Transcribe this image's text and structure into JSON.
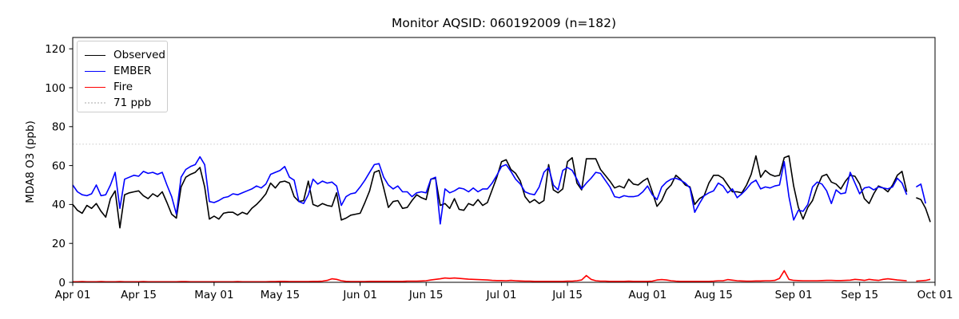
{
  "title": "Monitor AQSID: 060192009 (n=182)",
  "legend": {
    "items": [
      {
        "label": "Observed",
        "color": "#000000",
        "style": "solid"
      },
      {
        "label": "EMBER",
        "color": "#0000ff",
        "style": "solid"
      },
      {
        "label": "Fire",
        "color": "#ff0000",
        "style": "solid"
      },
      {
        "label": "71 ppb",
        "color": "#d3d3d3",
        "style": "dotted"
      }
    ]
  },
  "chart_data": {
    "type": "line",
    "title": "Monitor AQSID: 060192009 (n=182)",
    "xlabel": "",
    "ylabel": "MDA8 O3 (ppb)",
    "ylim": [
      0,
      126
    ],
    "grid": false,
    "legend_position": "upper left",
    "n_label": 182,
    "x_start": "Apr 01",
    "x_end": "Oct 01",
    "days_total": 183,
    "missing_day_index": 178,
    "y_ticks": [
      0,
      20,
      40,
      60,
      80,
      100,
      120
    ],
    "x_ticks": [
      {
        "label": "Apr 01",
        "day": 0
      },
      {
        "label": "Apr 15",
        "day": 14
      },
      {
        "label": "May 01",
        "day": 30
      },
      {
        "label": "May 15",
        "day": 44
      },
      {
        "label": "Jun 01",
        "day": 61
      },
      {
        "label": "Jun 15",
        "day": 75
      },
      {
        "label": "Jul 01",
        "day": 91
      },
      {
        "label": "Jul 15",
        "day": 105
      },
      {
        "label": "Aug 01",
        "day": 122
      },
      {
        "label": "Aug 15",
        "day": 136
      },
      {
        "label": "Sep 01",
        "day": 153
      },
      {
        "label": "Sep 15",
        "day": 167
      },
      {
        "label": "Oct 01",
        "day": 183
      }
    ],
    "threshold": {
      "label": "71 ppb",
      "value": 71,
      "color": "#d3d3d3",
      "style": "dotted"
    },
    "series": [
      {
        "name": "Observed",
        "color": "#000000",
        "values": [
          40,
          37,
          35.5,
          39.5,
          38,
          40.5,
          36.5,
          33.5,
          43,
          47,
          28,
          45,
          46,
          46.5,
          47,
          44.5,
          43,
          45.5,
          44,
          46.5,
          41,
          35,
          33,
          49,
          54,
          55.5,
          56.5,
          59,
          49,
          32.5,
          34,
          32.5,
          35.5,
          36,
          36,
          34.5,
          36,
          35,
          38,
          40,
          42.5,
          45.5,
          51,
          48.5,
          51.5,
          52,
          51,
          44,
          41.5,
          42,
          52,
          40,
          39,
          40.5,
          39.5,
          39,
          46,
          32,
          33,
          34.5,
          35,
          35.5,
          41,
          47,
          56.5,
          57.5,
          48.5,
          38.5,
          41.5,
          42,
          38,
          38.5,
          42,
          45,
          43.5,
          42.5,
          53,
          53.5,
          39.5,
          40.5,
          38,
          43,
          37.5,
          37,
          40.5,
          39.5,
          42.5,
          39.5,
          41,
          47.5,
          54,
          62,
          63,
          58,
          56,
          52,
          44,
          41,
          42.5,
          40.5,
          42,
          60.5,
          47.5,
          46,
          48,
          62,
          64,
          51,
          47.5,
          63.5,
          63.5,
          63.5,
          58,
          55,
          52,
          48.5,
          49.5,
          48.5,
          53,
          50.5,
          50,
          52,
          53.5,
          46.5,
          39,
          42,
          47.5,
          50,
          55,
          53,
          50,
          49,
          40,
          43,
          44.5,
          51,
          55,
          55,
          53.5,
          50,
          46.5,
          46.5,
          46,
          50,
          55.5,
          65,
          54,
          57.5,
          55.5,
          54.5,
          55,
          64,
          65,
          49.5,
          38.5,
          32.5,
          38.5,
          42,
          49,
          54.5,
          55.5,
          51.5,
          50.5,
          48,
          52,
          55,
          54.5,
          50.5,
          43,
          40.5,
          45.5,
          49.5,
          48.5,
          46.5,
          50,
          55,
          57,
          46.5,
          null,
          43.5,
          42.5,
          38,
          31
        ]
      },
      {
        "name": "EMBER",
        "color": "#0000ff",
        "values": [
          50,
          46.5,
          45,
          44.5,
          45.5,
          50,
          44.5,
          45,
          50,
          56.5,
          38,
          53,
          54,
          55,
          54.5,
          57,
          56,
          56.5,
          55.5,
          56.5,
          50,
          44,
          35,
          54,
          58,
          59.5,
          60.5,
          64.5,
          60.5,
          41.5,
          41,
          42,
          43.5,
          44,
          45.5,
          45,
          46,
          47,
          48,
          49.5,
          48.5,
          50.5,
          55.5,
          56.5,
          57.5,
          59.5,
          54,
          52.5,
          41.5,
          40.5,
          45,
          53,
          50.5,
          52,
          51,
          51.5,
          49.5,
          39.5,
          44,
          45.5,
          46,
          49,
          52.5,
          56.5,
          60.5,
          61,
          54,
          50,
          48,
          49.5,
          46.5,
          46.5,
          44,
          46,
          46.5,
          46,
          53,
          54,
          30,
          48,
          46,
          47,
          48.5,
          48,
          46.5,
          48.5,
          46.5,
          48,
          48,
          51,
          55,
          59.5,
          60.5,
          57,
          53,
          50.5,
          46.5,
          45.5,
          45,
          49,
          56.5,
          59,
          50,
          47.5,
          57.5,
          59,
          57.5,
          53,
          48,
          51,
          53.5,
          56.5,
          56,
          52.5,
          49,
          44,
          43.5,
          44.5,
          44,
          44,
          44.5,
          46.5,
          49.5,
          45,
          42.5,
          49,
          51.5,
          53,
          53.5,
          52.5,
          51,
          48.5,
          36,
          40.5,
          44.5,
          46,
          47,
          51,
          49.5,
          46,
          48,
          43.5,
          45.5,
          48,
          51,
          52.5,
          48,
          49,
          48.5,
          49.5,
          50,
          62,
          44,
          32,
          37,
          36.5,
          40,
          49,
          51.5,
          50.5,
          47,
          40.5,
          47.5,
          45.5,
          46,
          56.5,
          51,
          45.5,
          48.5,
          49,
          47.5,
          49,
          48.5,
          48,
          49,
          53.5,
          51,
          45,
          null,
          49,
          50.5,
          40.5,
          null
        ]
      },
      {
        "name": "Fire",
        "color": "#ff0000",
        "values": [
          0.3,
          0.3,
          0.4,
          0.3,
          0.3,
          0.3,
          0.4,
          0.3,
          0.3,
          0.3,
          0.4,
          0.3,
          0.3,
          0.3,
          0.3,
          0.4,
          0.3,
          0.3,
          0.3,
          0.3,
          0.3,
          0.3,
          0.3,
          0.4,
          0.4,
          0.3,
          0.3,
          0.3,
          0.3,
          0.3,
          0.3,
          0.3,
          0.3,
          0.3,
          0.3,
          0.4,
          0.3,
          0.3,
          0.3,
          0.3,
          0.3,
          0.3,
          0.4,
          0.4,
          0.5,
          0.5,
          0.4,
          0.4,
          0.4,
          0.4,
          0.4,
          0.5,
          0.5,
          0.6,
          1.0,
          1.8,
          1.5,
          0.8,
          0.5,
          0.4,
          0.4,
          0.4,
          0.4,
          0.5,
          0.5,
          0.5,
          0.5,
          0.5,
          0.5,
          0.5,
          0.5,
          0.6,
          0.6,
          0.6,
          0.7,
          0.8,
          1.2,
          1.5,
          1.8,
          2.2,
          2.0,
          2.2,
          2.0,
          1.8,
          1.6,
          1.5,
          1.4,
          1.3,
          1.2,
          1.0,
          0.9,
          0.9,
          0.8,
          1.0,
          0.8,
          0.7,
          0.6,
          0.6,
          0.5,
          0.5,
          0.5,
          0.5,
          0.5,
          0.5,
          0.5,
          0.6,
          0.6,
          0.8,
          1.2,
          3.5,
          1.5,
          0.8,
          0.6,
          0.6,
          0.5,
          0.5,
          0.5,
          0.5,
          0.6,
          0.5,
          0.5,
          0.5,
          0.5,
          0.6,
          1.2,
          1.4,
          1.2,
          0.8,
          0.6,
          0.5,
          0.5,
          0.5,
          0.5,
          0.5,
          0.5,
          0.5,
          0.6,
          0.8,
          0.8,
          1.4,
          1.1,
          0.8,
          0.7,
          0.6,
          0.6,
          0.7,
          0.7,
          0.8,
          0.8,
          1.0,
          2.0,
          6.0,
          1.5,
          1.0,
          0.9,
          0.8,
          0.8,
          0.8,
          0.8,
          0.9,
          1.0,
          1.0,
          0.9,
          0.9,
          1.0,
          1.1,
          1.5,
          1.3,
          1.0,
          1.5,
          1.2,
          1.0,
          1.5,
          1.8,
          1.5,
          1.2,
          1.0,
          0.8,
          null,
          0.6,
          0.8,
          1.0,
          1.5
        ]
      }
    ]
  }
}
